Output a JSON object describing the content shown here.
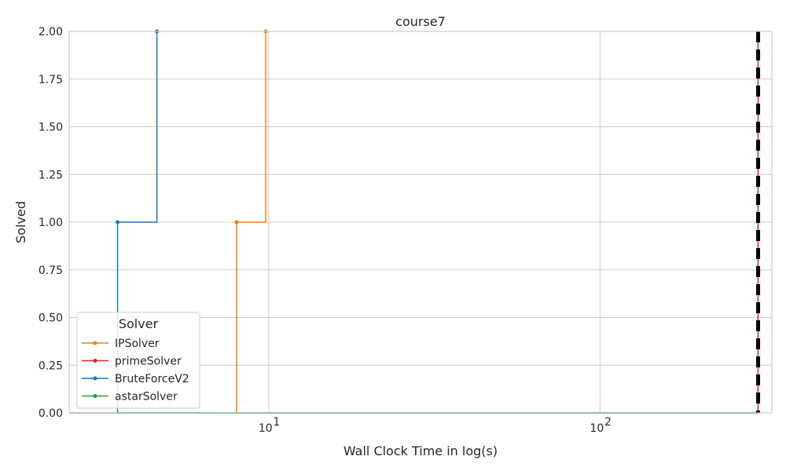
{
  "chart_data": {
    "type": "line",
    "title": "course7",
    "xlabel": "Wall Clock Time in log(s)",
    "ylabel": "Solved",
    "x_scale": "log",
    "xlim": [
      2.5,
      330
    ],
    "ylim": [
      0,
      2
    ],
    "x_ticks": [
      {
        "value": 10,
        "base": "10",
        "exp": "1"
      },
      {
        "value": 100,
        "base": "10",
        "exp": "2"
      }
    ],
    "y_ticks": [
      "0.00",
      "0.25",
      "0.50",
      "0.75",
      "1.00",
      "1.25",
      "1.50",
      "1.75",
      "2.00"
    ],
    "grid": true,
    "legend": {
      "title": "Solver",
      "placement": "lower-left"
    },
    "series": [
      {
        "name": "IPSolver",
        "color": "#ff7f0e",
        "points": [
          [
            8.0,
            0
          ],
          [
            8.0,
            1
          ],
          [
            9.8,
            1
          ],
          [
            9.8,
            2
          ]
        ],
        "markers": [
          [
            8.0,
            1
          ],
          [
            9.8,
            2
          ]
        ],
        "tail_to": 300
      },
      {
        "name": "primeSolver",
        "color": "#d62728",
        "points": [
          [
            300,
            0
          ],
          [
            300,
            2
          ]
        ],
        "markers": [],
        "tail_to": 300
      },
      {
        "name": "BruteForceV2",
        "color": "#1f77b4",
        "points": [
          [
            3.5,
            0
          ],
          [
            3.5,
            1
          ],
          [
            4.6,
            1
          ],
          [
            4.6,
            2
          ]
        ],
        "markers": [
          [
            3.5,
            1
          ],
          [
            4.6,
            2
          ]
        ],
        "tail_to": 300
      },
      {
        "name": "astarSolver",
        "color": "#2ca02c",
        "points": [],
        "markers": [],
        "tail_to": 300
      }
    ],
    "timeout_line": {
      "x": 300,
      "color": "#000000",
      "style": "dashed"
    }
  }
}
